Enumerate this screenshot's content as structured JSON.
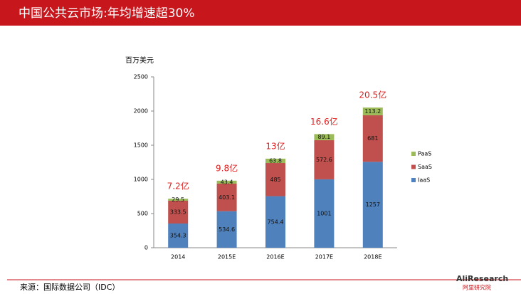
{
  "chart_data": {
    "type": "stacked_bar",
    "title": "中国公共云市场:年均增速超30%",
    "y_label": "百万美元",
    "categories": [
      "2014",
      "2015E",
      "2016E",
      "2017E",
      "2018E"
    ],
    "series": [
      {
        "name": "IaaS",
        "color": "#4f81bd",
        "values": [
          354.3,
          534.6,
          754.4,
          1001,
          1257
        ]
      },
      {
        "name": "SaaS",
        "color": "#c0504d",
        "values": [
          333.5,
          403.1,
          485,
          572.6,
          681
        ]
      },
      {
        "name": "PaaS",
        "color": "#9bbb59",
        "values": [
          29.5,
          43.4,
          63.8,
          89.1,
          113.2
        ]
      }
    ],
    "annotations": [
      "7.2亿",
      "9.8亿",
      "13亿",
      "16.6亿",
      "20.5亿"
    ],
    "annotation_color": "#e02020",
    "ylim": [
      0,
      2500
    ],
    "yticks": [
      0,
      500,
      1000,
      1500,
      2000,
      2500
    ],
    "grid": false,
    "legend": "right"
  },
  "source": "来源：国际数据公司（IDC）",
  "logo": {
    "brand": "AliResearch",
    "subtitle": "阿里研究院"
  }
}
